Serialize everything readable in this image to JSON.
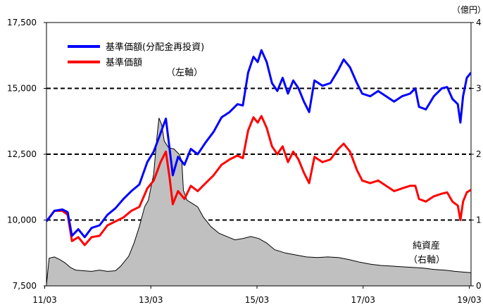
{
  "chart_data": {
    "type": "line",
    "unit_right": "（億円）",
    "x_ticks": [
      "11/03",
      "13/03",
      "15/03",
      "17/03",
      "19/03"
    ],
    "y_left_ticks": [
      "7,500",
      "10,000",
      "12,500",
      "15,000",
      "17,500"
    ],
    "y_right_ticks": [
      "0",
      "1",
      "2",
      "3",
      "4"
    ],
    "ylim_left": [
      7500,
      17500
    ],
    "ylim_right": [
      0,
      4000
    ],
    "xlim": [
      2011.2,
      2019.2
    ],
    "grid": "dashed horizontal at 10,000 / 12,500 / 15,000",
    "legend_position": "top-left",
    "left_axis_note": "（左軸）",
    "right_axis_note_line1": "純資産",
    "right_axis_note_line2": "（右軸）",
    "series": [
      {
        "name": "基準価額(分配金再投資)",
        "color": "#0000ff",
        "axis": "left",
        "points": [
          [
            2011.2,
            9950
          ],
          [
            2011.35,
            10350
          ],
          [
            2011.5,
            10400
          ],
          [
            2011.6,
            10300
          ],
          [
            2011.68,
            9400
          ],
          [
            2011.8,
            9650
          ],
          [
            2011.92,
            9350
          ],
          [
            2012.05,
            9700
          ],
          [
            2012.2,
            9800
          ],
          [
            2012.35,
            10200
          ],
          [
            2012.5,
            10450
          ],
          [
            2012.65,
            10800
          ],
          [
            2012.8,
            11100
          ],
          [
            2012.95,
            11350
          ],
          [
            2013.1,
            12200
          ],
          [
            2013.22,
            12600
          ],
          [
            2013.35,
            13300
          ],
          [
            2013.45,
            13850
          ],
          [
            2013.52,
            12700
          ],
          [
            2013.58,
            11700
          ],
          [
            2013.68,
            12400
          ],
          [
            2013.8,
            12100
          ],
          [
            2013.92,
            12700
          ],
          [
            2014.05,
            12500
          ],
          [
            2014.2,
            12950
          ],
          [
            2014.35,
            13350
          ],
          [
            2014.5,
            13900
          ],
          [
            2014.65,
            14100
          ],
          [
            2014.8,
            14400
          ],
          [
            2014.9,
            14350
          ],
          [
            2015.0,
            15600
          ],
          [
            2015.1,
            16200
          ],
          [
            2015.18,
            16000
          ],
          [
            2015.25,
            16450
          ],
          [
            2015.35,
            16000
          ],
          [
            2015.45,
            15200
          ],
          [
            2015.55,
            14900
          ],
          [
            2015.65,
            15400
          ],
          [
            2015.75,
            14800
          ],
          [
            2015.85,
            15300
          ],
          [
            2015.95,
            15000
          ],
          [
            2016.05,
            14500
          ],
          [
            2016.15,
            14100
          ],
          [
            2016.25,
            15300
          ],
          [
            2016.4,
            15100
          ],
          [
            2016.55,
            15200
          ],
          [
            2016.7,
            15700
          ],
          [
            2016.8,
            16100
          ],
          [
            2016.92,
            15800
          ],
          [
            2017.05,
            15200
          ],
          [
            2017.15,
            14800
          ],
          [
            2017.3,
            14700
          ],
          [
            2017.45,
            14900
          ],
          [
            2017.6,
            14700
          ],
          [
            2017.75,
            14500
          ],
          [
            2017.9,
            14700
          ],
          [
            2018.05,
            14800
          ],
          [
            2018.15,
            15000
          ],
          [
            2018.22,
            14300
          ],
          [
            2018.35,
            14200
          ],
          [
            2018.5,
            14700
          ],
          [
            2018.65,
            15000
          ],
          [
            2018.75,
            15050
          ],
          [
            2018.85,
            14600
          ],
          [
            2018.95,
            14400
          ],
          [
            2019.0,
            13700
          ],
          [
            2019.05,
            14700
          ],
          [
            2019.12,
            15400
          ],
          [
            2019.2,
            15600
          ]
        ]
      },
      {
        "name": "基準価額",
        "color": "#ff0000",
        "axis": "left",
        "points": [
          [
            2011.2,
            9950
          ],
          [
            2011.35,
            10350
          ],
          [
            2011.5,
            10350
          ],
          [
            2011.6,
            10200
          ],
          [
            2011.68,
            9200
          ],
          [
            2011.8,
            9350
          ],
          [
            2011.92,
            9050
          ],
          [
            2012.05,
            9350
          ],
          [
            2012.2,
            9400
          ],
          [
            2012.35,
            9800
          ],
          [
            2012.5,
            9950
          ],
          [
            2012.65,
            10100
          ],
          [
            2012.8,
            10350
          ],
          [
            2012.95,
            10500
          ],
          [
            2013.1,
            11200
          ],
          [
            2013.22,
            11500
          ],
          [
            2013.35,
            12200
          ],
          [
            2013.45,
            12600
          ],
          [
            2013.52,
            11600
          ],
          [
            2013.58,
            10600
          ],
          [
            2013.68,
            11100
          ],
          [
            2013.8,
            10800
          ],
          [
            2013.92,
            11300
          ],
          [
            2014.05,
            11100
          ],
          [
            2014.2,
            11400
          ],
          [
            2014.35,
            11700
          ],
          [
            2014.5,
            12100
          ],
          [
            2014.65,
            12300
          ],
          [
            2014.8,
            12450
          ],
          [
            2014.9,
            12350
          ],
          [
            2015.0,
            13400
          ],
          [
            2015.1,
            13900
          ],
          [
            2015.18,
            13700
          ],
          [
            2015.25,
            13950
          ],
          [
            2015.35,
            13500
          ],
          [
            2015.45,
            12800
          ],
          [
            2015.55,
            12500
          ],
          [
            2015.65,
            12800
          ],
          [
            2015.75,
            12200
          ],
          [
            2015.85,
            12600
          ],
          [
            2015.95,
            12300
          ],
          [
            2016.05,
            11800
          ],
          [
            2016.15,
            11400
          ],
          [
            2016.25,
            12400
          ],
          [
            2016.4,
            12200
          ],
          [
            2016.55,
            12300
          ],
          [
            2016.7,
            12700
          ],
          [
            2016.8,
            12900
          ],
          [
            2016.92,
            12600
          ],
          [
            2017.05,
            11900
          ],
          [
            2017.15,
            11500
          ],
          [
            2017.3,
            11400
          ],
          [
            2017.45,
            11500
          ],
          [
            2017.6,
            11300
          ],
          [
            2017.75,
            11100
          ],
          [
            2017.9,
            11200
          ],
          [
            2018.05,
            11300
          ],
          [
            2018.15,
            11300
          ],
          [
            2018.22,
            10800
          ],
          [
            2018.35,
            10700
          ],
          [
            2018.5,
            10900
          ],
          [
            2018.65,
            11000
          ],
          [
            2018.75,
            11050
          ],
          [
            2018.85,
            10700
          ],
          [
            2018.95,
            10550
          ],
          [
            2019.0,
            10000
          ],
          [
            2019.05,
            10700
          ],
          [
            2019.12,
            11050
          ],
          [
            2019.2,
            11150
          ]
        ]
      },
      {
        "name": "純資産",
        "color": "#000000",
        "fill": "#c0c0c0",
        "axis": "right",
        "points": [
          [
            2011.2,
            20
          ],
          [
            2011.25,
            420
          ],
          [
            2011.35,
            440
          ],
          [
            2011.45,
            400
          ],
          [
            2011.55,
            350
          ],
          [
            2011.65,
            280
          ],
          [
            2011.75,
            240
          ],
          [
            2011.9,
            230
          ],
          [
            2012.05,
            220
          ],
          [
            2012.2,
            240
          ],
          [
            2012.35,
            220
          ],
          [
            2012.5,
            230
          ],
          [
            2012.6,
            300
          ],
          [
            2012.75,
            450
          ],
          [
            2012.85,
            650
          ],
          [
            2012.95,
            900
          ],
          [
            2013.05,
            1200
          ],
          [
            2013.12,
            1300
          ],
          [
            2013.22,
            1700
          ],
          [
            2013.28,
            2250
          ],
          [
            2013.32,
            2550
          ],
          [
            2013.37,
            2450
          ],
          [
            2013.42,
            2200
          ],
          [
            2013.5,
            2100
          ],
          [
            2013.6,
            2080
          ],
          [
            2013.7,
            2000
          ],
          [
            2013.75,
            1900
          ],
          [
            2013.78,
            1450
          ],
          [
            2013.85,
            1300
          ],
          [
            2013.95,
            1250
          ],
          [
            2014.05,
            1200
          ],
          [
            2014.15,
            1050
          ],
          [
            2014.3,
            900
          ],
          [
            2014.45,
            800
          ],
          [
            2014.6,
            750
          ],
          [
            2014.75,
            700
          ],
          [
            2014.9,
            720
          ],
          [
            2015.05,
            750
          ],
          [
            2015.2,
            720
          ],
          [
            2015.35,
            650
          ],
          [
            2015.5,
            550
          ],
          [
            2015.7,
            500
          ],
          [
            2015.9,
            470
          ],
          [
            2016.1,
            440
          ],
          [
            2016.3,
            430
          ],
          [
            2016.5,
            440
          ],
          [
            2016.7,
            430
          ],
          [
            2016.9,
            400
          ],
          [
            2017.1,
            360
          ],
          [
            2017.3,
            330
          ],
          [
            2017.5,
            310
          ],
          [
            2017.7,
            300
          ],
          [
            2017.9,
            290
          ],
          [
            2018.1,
            280
          ],
          [
            2018.3,
            270
          ],
          [
            2018.5,
            250
          ],
          [
            2018.7,
            240
          ],
          [
            2018.9,
            220
          ],
          [
            2019.05,
            210
          ],
          [
            2019.2,
            200
          ]
        ]
      }
    ]
  }
}
